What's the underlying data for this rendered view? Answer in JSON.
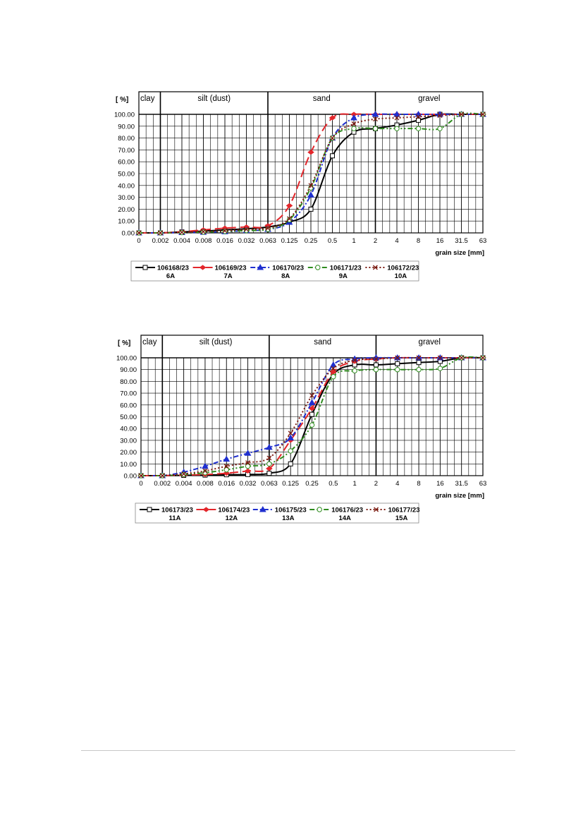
{
  "chart_data": [
    {
      "type": "line",
      "ylabel": "[ %]",
      "xlabel": "grain size [mm]",
      "categories": [
        "0",
        "0.002",
        "0.004",
        "0.008",
        "0.016",
        "0.032",
        "0.063",
        "0.125",
        "0.25",
        "0.5",
        "1",
        "2",
        "4",
        "8",
        "16",
        "31.5",
        "63"
      ],
      "ylim": [
        0,
        100
      ],
      "yticks": [
        "0.00",
        "10.00",
        "20.00",
        "30.00",
        "40.00",
        "50.00",
        "60.00",
        "70.00",
        "80.00",
        "90.00",
        "100.00"
      ],
      "zones": [
        {
          "label": "clay",
          "from": 0,
          "to": 1
        },
        {
          "label": "silt (dust)",
          "from": 1,
          "to": 6
        },
        {
          "label": "sand",
          "from": 6,
          "to": 11
        },
        {
          "label": "gravel",
          "from": 11,
          "to": 16
        }
      ],
      "grid": true,
      "legend": "bottom",
      "series": [
        {
          "name": "106168/23",
          "sub": "6A",
          "color": "#000000",
          "dash": "",
          "marker": "square",
          "values": [
            0,
            0,
            0.8,
            1.5,
            2.5,
            3.5,
            5,
            9,
            20,
            65,
            85,
            88,
            91,
            95,
            100,
            100,
            100
          ]
        },
        {
          "name": "106169/23",
          "sub": "7A",
          "color": "#e3262b",
          "dash": "12,6",
          "marker": "diamond",
          "values": [
            0,
            0,
            1,
            2.5,
            4,
            5,
            6,
            23,
            68,
            97,
            100,
            100,
            100,
            100,
            100,
            100,
            100
          ]
        },
        {
          "name": "106170/23",
          "sub": "8A",
          "color": "#1f2fcf",
          "dash": "7,3,2,3",
          "marker": "triangle",
          "values": [
            0,
            0,
            0.3,
            0.5,
            1,
            2,
            3,
            9,
            32,
            80,
            97,
            100,
            100,
            100,
            100,
            100,
            100
          ]
        },
        {
          "name": "106171/23",
          "sub": "9A",
          "color": "#2e8b1e",
          "dash": "7,3,2,3,2,3",
          "marker": "circle",
          "values": [
            0,
            0,
            0.3,
            0.7,
            1.2,
            2,
            3,
            11,
            38,
            80,
            88,
            88,
            88,
            88,
            88,
            100,
            100
          ]
        },
        {
          "name": "106172/23",
          "sub": "10A",
          "color": "#7a1a10",
          "dash": "2,3",
          "marker": "x",
          "values": [
            0,
            0,
            0.5,
            1,
            1.8,
            3,
            4,
            12,
            40,
            80,
            92,
            96,
            97,
            98,
            99,
            100,
            100
          ]
        }
      ]
    },
    {
      "type": "line",
      "ylabel": "[ %]",
      "xlabel": "grain size [mm]",
      "categories": [
        "0",
        "0.002",
        "0.004",
        "0.008",
        "0.016",
        "0.032",
        "0.063",
        "0.125",
        "0.25",
        "0.5",
        "1",
        "2",
        "4",
        "8",
        "16",
        "31.5",
        "63"
      ],
      "ylim": [
        0,
        100
      ],
      "yticks": [
        "0.00",
        "10.00",
        "20.00",
        "30.00",
        "40.00",
        "50.00",
        "60.00",
        "70.00",
        "80.00",
        "90.00",
        "100.00"
      ],
      "zones": [
        {
          "label": "clay",
          "from": 0,
          "to": 1
        },
        {
          "label": "silt (dust)",
          "from": 1,
          "to": 6
        },
        {
          "label": "sand",
          "from": 6,
          "to": 11
        },
        {
          "label": "gravel",
          "from": 11,
          "to": 16
        }
      ],
      "grid": true,
      "legend": "bottom",
      "series": [
        {
          "name": "106173/23",
          "sub": "11A",
          "color": "#000000",
          "dash": "",
          "marker": "square",
          "values": [
            0,
            0,
            0.3,
            0.5,
            0.8,
            1,
            2,
            10,
            52,
            86,
            94,
            94,
            95,
            96,
            97,
            100,
            100
          ]
        },
        {
          "name": "106174/23",
          "sub": "12A",
          "color": "#e3262b",
          "dash": "12,6",
          "marker": "diamond",
          "values": [
            0,
            0,
            0.5,
            1,
            2,
            4,
            6,
            30,
            57,
            88,
            97,
            99,
            100,
            100,
            100,
            100,
            100
          ]
        },
        {
          "name": "106175/23",
          "sub": "13A",
          "color": "#1f2fcf",
          "dash": "7,3,2,3",
          "marker": "triangle",
          "values": [
            0,
            0,
            3,
            8,
            14,
            19,
            24,
            32,
            62,
            94,
            99,
            100,
            100,
            100,
            100,
            100,
            100
          ]
        },
        {
          "name": "106176/23",
          "sub": "14A",
          "color": "#2e8b1e",
          "dash": "7,3,2,3,2,3",
          "marker": "circle",
          "values": [
            0,
            0,
            1,
            2.5,
            5,
            8,
            10,
            21,
            43,
            84,
            89,
            90,
            90,
            90,
            91,
            100,
            100
          ]
        },
        {
          "name": "106177/23",
          "sub": "15A",
          "color": "#7a1a10",
          "dash": "2,3",
          "marker": "x",
          "values": [
            0,
            0,
            1.5,
            4,
            8,
            11,
            15,
            36,
            68,
            91,
            98,
            99,
            100,
            100,
            100,
            100,
            100
          ]
        }
      ]
    }
  ]
}
